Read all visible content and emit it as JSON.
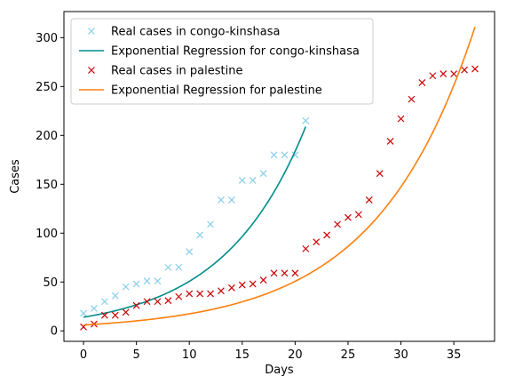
{
  "chart_data": {
    "type": "line",
    "title": "",
    "xlabel": "Days",
    "ylabel": "Cases",
    "xlim": [
      -1.85,
      38.85
    ],
    "ylim": [
      -10.7,
      326.7
    ],
    "xticks": [
      0,
      5,
      10,
      15,
      20,
      25,
      30,
      35
    ],
    "yticks": [
      0,
      50,
      100,
      150,
      200,
      250,
      300
    ],
    "grid": false,
    "legend": "upper left",
    "series": [
      {
        "name": "Real cases in congo-kinshasa",
        "kind": "scatter",
        "marker": "x",
        "color": "#87CEEB",
        "x": [
          0,
          1,
          2,
          3,
          4,
          5,
          6,
          7,
          8,
          9,
          10,
          11,
          12,
          13,
          14,
          15,
          16,
          17,
          18,
          19,
          20,
          21
        ],
        "y": [
          18,
          23,
          30,
          36,
          45,
          48,
          51,
          51,
          65,
          65,
          81,
          98,
          109,
          134,
          134,
          154,
          154,
          161,
          180,
          180,
          180,
          215
        ]
      },
      {
        "name": "Exponential Regression for congo-kinshasa",
        "kind": "line",
        "color": "#008B8B",
        "fit": {
          "x0": 0,
          "x1": 21,
          "y0": 14,
          "y1": 209
        }
      },
      {
        "name": "Real cases in palestine",
        "kind": "scatter",
        "marker": "x",
        "color": "#CC0000",
        "x": [
          0,
          1,
          2,
          3,
          4,
          5,
          6,
          7,
          8,
          9,
          10,
          11,
          12,
          13,
          14,
          15,
          16,
          17,
          18,
          19,
          20,
          21,
          22,
          23,
          24,
          25,
          26,
          27,
          28,
          29,
          30,
          31,
          32,
          33,
          34,
          35,
          36,
          37
        ],
        "y": [
          4,
          7,
          16,
          16,
          19,
          26,
          30,
          30,
          31,
          35,
          38,
          38,
          38,
          41,
          44,
          47,
          48,
          52,
          59,
          59,
          59,
          84,
          91,
          98,
          109,
          116,
          119,
          134,
          161,
          194,
          217,
          237,
          254,
          261,
          263,
          263,
          267,
          268
        ]
      },
      {
        "name": "Exponential Regression for palestine",
        "kind": "line",
        "color": "#FF7F0E",
        "fit": {
          "x0": 0,
          "x1": 37,
          "y0": 6,
          "y1": 311
        }
      }
    ]
  }
}
